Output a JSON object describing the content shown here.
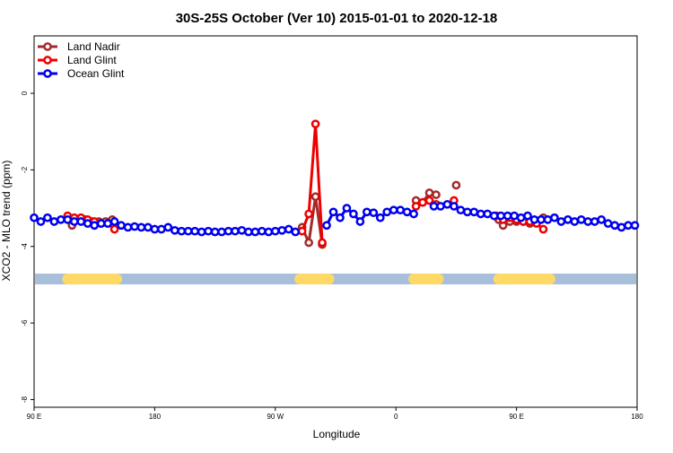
{
  "chart_data": {
    "type": "line",
    "title": "30S-25S October (Ver 10)   2015-01-01 to 2020-12-18",
    "xlabel": "Longitude",
    "ylabel": "XCO2 - MLO trend (ppm)",
    "xlim": [
      -90,
      180
    ],
    "ylim": [
      -8.2,
      1.5
    ],
    "x_ticks": [
      {
        "value": -90,
        "label": "90 E"
      },
      {
        "value": -36,
        "label": "180"
      },
      {
        "value": 18,
        "label": "90 W"
      },
      {
        "value": 72,
        "label": "0"
      },
      {
        "value": 126,
        "label": "90 E"
      },
      {
        "value": 180,
        "label": "180"
      }
    ],
    "y_ticks": [
      {
        "value": 0,
        "label": "0"
      },
      {
        "value": -2,
        "label": "-2"
      },
      {
        "value": -4,
        "label": "-4"
      },
      {
        "value": -6,
        "label": "-6"
      },
      {
        "value": -8,
        "label": "-8"
      }
    ],
    "grid": false,
    "legend_position": "top-left",
    "land_band": {
      "y": -4.85,
      "ocean_color": "#a8bfdc",
      "land_color": "#ffd966",
      "land_segments": [
        [
          -75,
          -53
        ],
        [
          29,
          42
        ],
        [
          80,
          91
        ],
        [
          118,
          141
        ]
      ]
    },
    "series": [
      {
        "name": "Land Nadir",
        "color": "#a52a2a",
        "segments": [
          [
            [
              -74.5,
              -3.3
            ],
            [
              -73,
              -3.45
            ],
            [
              -70,
              -3.3
            ],
            [
              -67,
              -3.3
            ],
            [
              -64,
              -3.35
            ],
            [
              -61,
              -3.35
            ],
            [
              -58,
              -3.35
            ],
            [
              -55,
              -3.3
            ]
          ],
          [
            [
              30,
              -3.5
            ],
            [
              33,
              -3.9
            ],
            [
              36,
              -2.7
            ],
            [
              39,
              -3.95
            ]
          ],
          [
            [
              81,
              -2.8
            ],
            [
              84,
              -2.85
            ],
            [
              87,
              -2.6
            ],
            [
              90,
              -2.65
            ]
          ],
          [
            [
              118,
              -3.3
            ],
            [
              120,
              -3.45
            ],
            [
              123,
              -3.35
            ],
            [
              126,
              -3.35
            ],
            [
              129,
              -3.35
            ],
            [
              132,
              -3.4
            ],
            [
              135,
              -3.35
            ],
            [
              138,
              -3.25
            ]
          ]
        ],
        "points": [
          [
            99,
            -2.4
          ]
        ]
      },
      {
        "name": "Land Glint",
        "color": "#ee0000",
        "segments": [
          [
            [
              -75,
              -3.2
            ],
            [
              -72,
              -3.25
            ],
            [
              -69,
              -3.25
            ],
            [
              -66,
              -3.3
            ],
            [
              -63,
              -3.35
            ],
            [
              -60,
              -3.4
            ],
            [
              -57,
              -3.4
            ],
            [
              -54,
              -3.55
            ]
          ],
          [
            [
              30,
              -3.6
            ],
            [
              33,
              -3.15
            ],
            [
              36,
              -0.8
            ],
            [
              39,
              -3.9
            ]
          ],
          [
            [
              81,
              -2.95
            ],
            [
              84,
              -2.85
            ],
            [
              87,
              -2.8
            ],
            [
              90,
              -2.9
            ]
          ],
          [
            [
              117,
              -3.2
            ],
            [
              120,
              -3.3
            ],
            [
              123,
              -3.25
            ],
            [
              126,
              -3.3
            ],
            [
              129,
              -3.35
            ],
            [
              132,
              -3.35
            ],
            [
              135,
              -3.4
            ],
            [
              138,
              -3.55
            ]
          ]
        ],
        "points": [
          [
            98,
            -2.8
          ]
        ]
      },
      {
        "name": "Ocean Glint",
        "color": "#0000ee",
        "segments": [
          [
            [
              -90,
              -3.25
            ],
            [
              -87,
              -3.35
            ],
            [
              -84,
              -3.25
            ],
            [
              -81,
              -3.35
            ],
            [
              -78,
              -3.3
            ],
            [
              -75,
              -3.3
            ],
            [
              -72,
              -3.35
            ],
            [
              -69,
              -3.35
            ],
            [
              -66,
              -3.4
            ],
            [
              -63,
              -3.45
            ],
            [
              -60,
              -3.4
            ],
            [
              -57,
              -3.4
            ],
            [
              -54,
              -3.35
            ],
            [
              -51,
              -3.45
            ],
            [
              -48,
              -3.5
            ],
            [
              -45,
              -3.48
            ],
            [
              -42,
              -3.5
            ],
            [
              -39,
              -3.5
            ],
            [
              -36,
              -3.55
            ],
            [
              -33,
              -3.55
            ],
            [
              -30,
              -3.5
            ],
            [
              -27,
              -3.58
            ],
            [
              -24,
              -3.6
            ],
            [
              -21,
              -3.6
            ],
            [
              -18,
              -3.6
            ],
            [
              -15,
              -3.62
            ],
            [
              -12,
              -3.6
            ],
            [
              -9,
              -3.62
            ],
            [
              -6,
              -3.62
            ],
            [
              -3,
              -3.6
            ],
            [
              0,
              -3.6
            ],
            [
              3,
              -3.58
            ],
            [
              6,
              -3.62
            ],
            [
              9,
              -3.62
            ],
            [
              12,
              -3.6
            ],
            [
              15,
              -3.62
            ],
            [
              18,
              -3.6
            ],
            [
              21,
              -3.58
            ],
            [
              24,
              -3.55
            ],
            [
              27,
              -3.62
            ]
          ],
          [
            [
              41,
              -3.45
            ],
            [
              44,
              -3.1
            ],
            [
              47,
              -3.25
            ],
            [
              50,
              -3.0
            ],
            [
              53,
              -3.15
            ],
            [
              56,
              -3.35
            ],
            [
              59,
              -3.1
            ],
            [
              62,
              -3.12
            ],
            [
              65,
              -3.25
            ],
            [
              68,
              -3.1
            ],
            [
              71,
              -3.05
            ],
            [
              74,
              -3.05
            ],
            [
              77,
              -3.1
            ],
            [
              80,
              -3.15
            ]
          ],
          [
            [
              89,
              -2.95
            ],
            [
              92,
              -2.95
            ],
            [
              95,
              -2.9
            ],
            [
              98,
              -2.95
            ],
            [
              101,
              -3.05
            ],
            [
              104,
              -3.1
            ],
            [
              107,
              -3.1
            ],
            [
              110,
              -3.15
            ],
            [
              113,
              -3.15
            ],
            [
              116,
              -3.2
            ],
            [
              119,
              -3.2
            ],
            [
              122,
              -3.2
            ],
            [
              125,
              -3.2
            ],
            [
              128,
              -3.25
            ],
            [
              131,
              -3.2
            ],
            [
              134,
              -3.3
            ],
            [
              137,
              -3.3
            ],
            [
              140,
              -3.3
            ],
            [
              143,
              -3.25
            ],
            [
              146,
              -3.35
            ],
            [
              149,
              -3.3
            ],
            [
              152,
              -3.35
            ],
            [
              155,
              -3.3
            ],
            [
              158,
              -3.35
            ],
            [
              161,
              -3.35
            ],
            [
              164,
              -3.3
            ],
            [
              167,
              -3.4
            ],
            [
              170,
              -3.45
            ],
            [
              173,
              -3.5
            ],
            [
              176,
              -3.45
            ],
            [
              179,
              -3.45
            ]
          ]
        ],
        "points": []
      }
    ]
  }
}
